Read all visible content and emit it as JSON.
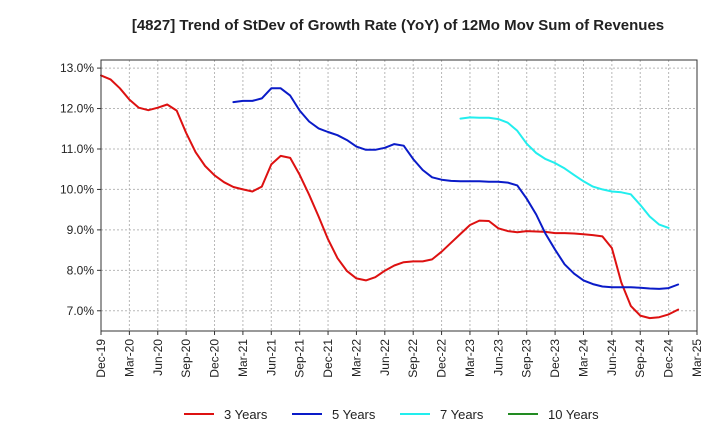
{
  "chart_data": {
    "type": "line",
    "title": "[4827]  Trend of StDev of Growth Rate (YoY) of 12Mo Mov Sum of Revenues",
    "xlabel": "",
    "ylabel": "",
    "x_ticks": [
      "Dec-19",
      "Mar-20",
      "Jun-20",
      "Sep-20",
      "Dec-20",
      "Mar-21",
      "Jun-21",
      "Sep-21",
      "Dec-21",
      "Mar-22",
      "Jun-22",
      "Sep-22",
      "Dec-22",
      "Mar-23",
      "Jun-23",
      "Sep-23",
      "Dec-23",
      "Mar-24",
      "Jun-24",
      "Sep-24",
      "Dec-24",
      "Mar-25"
    ],
    "y_ticks": [
      "7.0%",
      "8.0%",
      "9.0%",
      "10.0%",
      "11.0%",
      "12.0%",
      "13.0%"
    ],
    "y_tick_values": [
      7,
      8,
      9,
      10,
      11,
      12,
      13
    ],
    "ylim": [
      6.5,
      13.2
    ],
    "x_range": [
      0,
      63
    ],
    "grid": true,
    "legend_position": "bottom",
    "series": [
      {
        "name": "3 Years",
        "color": "#dd1111",
        "start": 0,
        "values": [
          12.82,
          12.72,
          12.5,
          12.22,
          12.02,
          11.96,
          12.02,
          12.1,
          11.95,
          11.4,
          10.92,
          10.58,
          10.35,
          10.18,
          10.06,
          10.0,
          9.95,
          10.07,
          10.62,
          10.83,
          10.78,
          10.36,
          9.87,
          9.33,
          8.77,
          8.3,
          7.98,
          7.8,
          7.75,
          7.83,
          7.99,
          8.12,
          8.2,
          8.22,
          8.22,
          8.27,
          8.46,
          8.68,
          8.9,
          9.12,
          9.23,
          9.22,
          9.04,
          8.97,
          8.94,
          8.97,
          8.96,
          8.95,
          8.92,
          8.92,
          8.91,
          8.89,
          8.87,
          8.84,
          8.55,
          7.7,
          7.12,
          6.88,
          6.82,
          6.84,
          6.91,
          7.03
        ]
      },
      {
        "name": "5 Years",
        "color": "#0a1bc8",
        "start": 14,
        "values": [
          12.16,
          12.19,
          12.19,
          12.25,
          12.5,
          12.5,
          12.32,
          11.95,
          11.68,
          11.51,
          11.42,
          11.34,
          11.22,
          11.06,
          10.98,
          10.98,
          11.03,
          11.12,
          11.08,
          10.75,
          10.48,
          10.3,
          10.24,
          10.21,
          10.2,
          10.2,
          10.2,
          10.19,
          10.19,
          10.17,
          10.1,
          9.77,
          9.38,
          8.9,
          8.51,
          8.15,
          7.92,
          7.75,
          7.66,
          7.6,
          7.58,
          7.58,
          7.58,
          7.57,
          7.55,
          7.54,
          7.56,
          7.65
        ]
      },
      {
        "name": "7 Years",
        "color": "#22eeee",
        "start": 38,
        "values": [
          11.75,
          11.78,
          11.77,
          11.77,
          11.74,
          11.65,
          11.45,
          11.13,
          10.9,
          10.75,
          10.65,
          10.52,
          10.36,
          10.2,
          10.07,
          10.0,
          9.95,
          9.93,
          9.88,
          9.62,
          9.33,
          9.13,
          9.05
        ]
      },
      {
        "name": "10 Years",
        "color": "#228b22",
        "start": 0,
        "values": []
      }
    ]
  }
}
